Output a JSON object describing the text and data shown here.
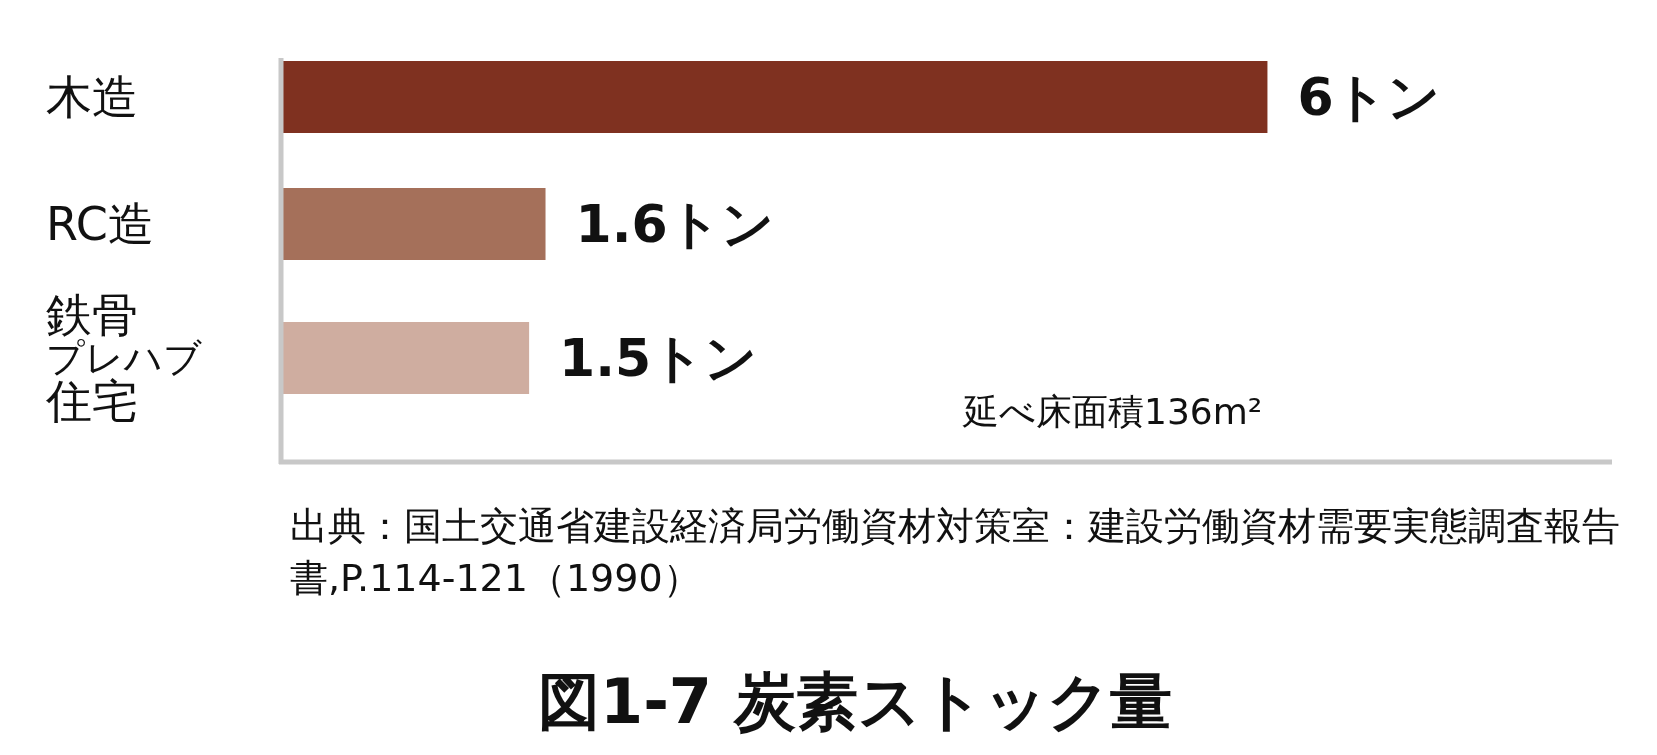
{
  "chart_data": {
    "type": "bar",
    "orientation": "horizontal",
    "title": "図1-7 炭素ストック量",
    "categories": [
      "木造",
      "RC造",
      "鉄骨プレハブ住宅"
    ],
    "values": [
      6,
      1.6,
      1.5
    ],
    "colors": [
      "#7f3120",
      "#a5705a",
      "#cfada0"
    ],
    "value_labels": [
      "6トン",
      "1.6トン",
      "1.5トン"
    ],
    "xlim": [
      0,
      8.1
    ],
    "tick_labels": "y",
    "annotations": [
      "延べ床面積136m²",
      "出典：国土交通省建設経済局労働資材対策室：建設労働資材需要実態調査報告書,P.114-121（1990）"
    ]
  }
}
